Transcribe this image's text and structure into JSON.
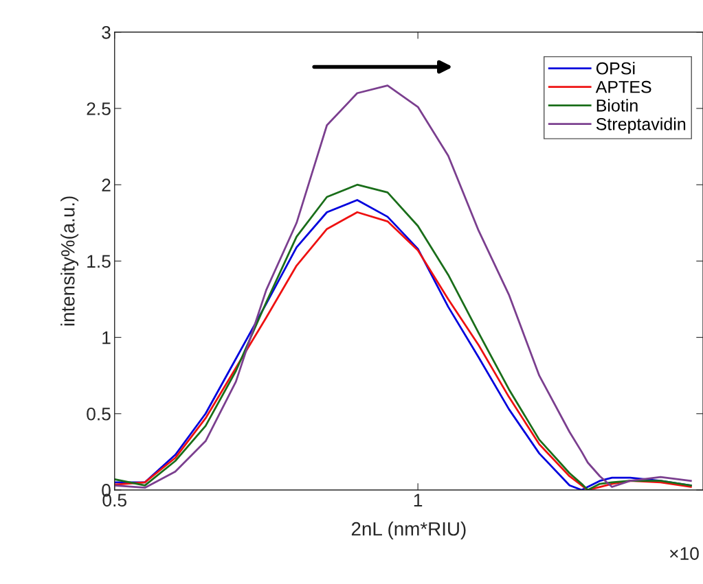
{
  "chart_data": {
    "type": "line",
    "xlabel": "2nL (nm*RIU)",
    "ylabel": "intensity%(a.u.)",
    "x": [
      0.5,
      0.55,
      0.6,
      0.65,
      0.7,
      0.75,
      0.8,
      0.85,
      0.9,
      0.95,
      1.0,
      1.05,
      1.1,
      1.15,
      1.2,
      1.25,
      1.27,
      1.28,
      1.3,
      1.32,
      1.35,
      1.4,
      1.45
    ],
    "series": [
      {
        "name": "OPSi",
        "color": "#0000dd",
        "values": [
          0.05,
          0.05,
          0.23,
          0.5,
          0.86,
          1.22,
          1.59,
          1.82,
          1.9,
          1.79,
          1.58,
          1.2,
          0.87,
          0.53,
          0.24,
          0.03,
          0.0,
          0.02,
          0.06,
          0.08,
          0.08,
          0.06,
          0.03
        ]
      },
      {
        "name": "APTES",
        "color": "#ee1111",
        "values": [
          0.035,
          0.05,
          0.21,
          0.47,
          0.8,
          1.13,
          1.47,
          1.71,
          1.82,
          1.76,
          1.57,
          1.25,
          0.95,
          0.61,
          0.3,
          0.09,
          0.03,
          0.0,
          0.02,
          0.04,
          0.06,
          0.05,
          0.02
        ]
      },
      {
        "name": "Biotin",
        "color": "#1a6e1a",
        "values": [
          0.07,
          0.03,
          0.19,
          0.42,
          0.78,
          1.23,
          1.66,
          1.92,
          2.0,
          1.95,
          1.73,
          1.41,
          1.03,
          0.66,
          0.33,
          0.11,
          0.04,
          0.0,
          0.04,
          0.05,
          0.06,
          0.06,
          0.03
        ]
      },
      {
        "name": "Streptavidin",
        "color": "#7b3f8f",
        "values": [
          0.03,
          0.015,
          0.12,
          0.32,
          0.71,
          1.31,
          1.75,
          2.39,
          2.6,
          2.65,
          2.51,
          2.19,
          1.7,
          1.28,
          0.75,
          0.38,
          0.25,
          0.18,
          0.09,
          0.02,
          0.06,
          0.085,
          0.06
        ]
      }
    ],
    "xlim": [
      0.5,
      1.47
    ],
    "ylim": [
      0,
      3
    ],
    "xticks": [
      0.5,
      1
    ],
    "yticks": [
      0,
      0.5,
      1,
      1.5,
      2,
      2.5,
      3
    ],
    "grid": false,
    "legend": "top right",
    "marker": "none",
    "line_style": "solid",
    "annotations": [
      "×10"
    ]
  }
}
